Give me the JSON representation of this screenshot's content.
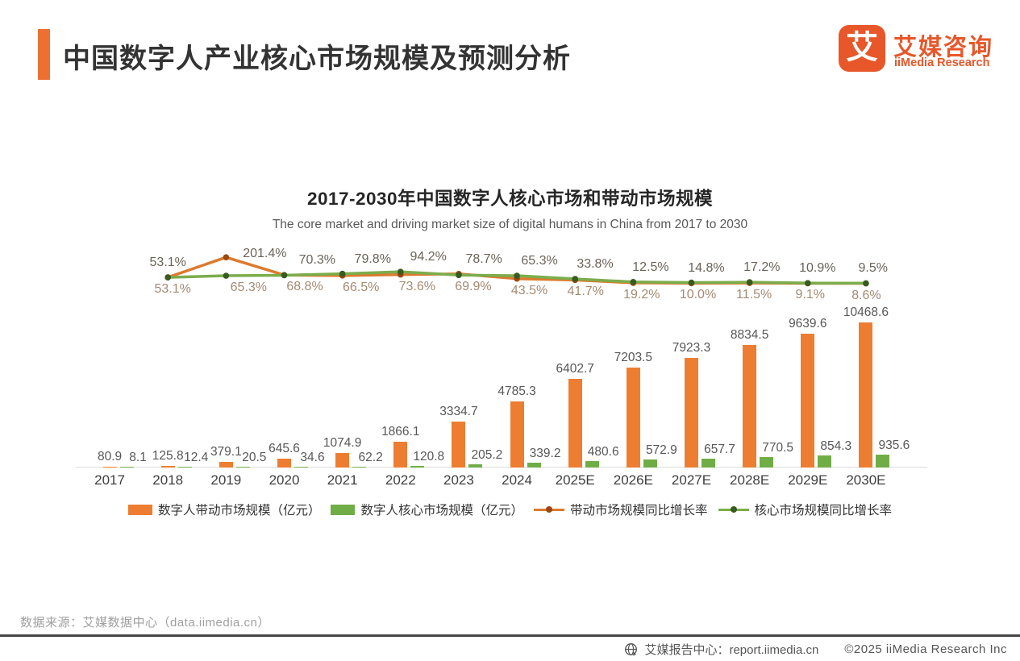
{
  "header": {
    "title": "中国数字人产业核心市场规模及预测分析",
    "logo": {
      "mark": "艾",
      "name_cn": "艾媒咨询",
      "name_en": "iiMedia Research"
    }
  },
  "chart": {
    "title": "2017-2030年中国数字人核心市场和带动市场规模",
    "subtitle": "The core market and driving market size of digital humans in China from 2017 to 2030"
  },
  "chart_data": {
    "type": "bar+line combo",
    "categories": [
      "2017",
      "2018",
      "2019",
      "2020",
      "2021",
      "2022",
      "2023",
      "2024",
      "2025E",
      "2026E",
      "2027E",
      "2028E",
      "2029E",
      "2030E"
    ],
    "bar_series": [
      {
        "name": "数字人带动市场规模（亿元）",
        "color": "#ED7D31",
        "values": [
          80.9,
          125.8,
          379.1,
          645.6,
          1074.9,
          1866.1,
          3334.7,
          4785.3,
          6402.7,
          7203.5,
          7923.3,
          8834.5,
          9639.6,
          10468.6
        ]
      },
      {
        "name": "数字人核心市场规模（亿元）",
        "color": "#70AD47",
        "values": [
          8.1,
          12.4,
          20.5,
          34.6,
          62.2,
          120.8,
          205.2,
          339.2,
          480.6,
          572.9,
          657.7,
          770.5,
          854.3,
          935.6
        ]
      }
    ],
    "line_series": [
      {
        "name": "带动市场规模同比增长率",
        "color": "#DC7A2F",
        "dot_color": "#9C480F",
        "first_year": "2018",
        "values": [
          53.1,
          201.4,
          70.3,
          66.5,
          73.6,
          78.7,
          43.5,
          33.8,
          12.5,
          10.0,
          11.5,
          9.1,
          8.6
        ]
      },
      {
        "name": "核心市场规模同比增长率",
        "color": "#7BAD4C",
        "dot_color": "#375B20",
        "first_year": "2018",
        "values": [
          53.1,
          65.3,
          68.8,
          79.8,
          94.2,
          69.9,
          65.3,
          41.7,
          19.2,
          14.8,
          17.2,
          10.9,
          9.5
        ]
      }
    ],
    "line_labels_top": [
      "53.1%",
      "201.4%",
      "70.3%",
      "79.8%",
      "94.2%",
      "78.7%",
      "65.3%",
      "33.8%",
      "12.5%",
      "14.8%",
      "17.2%",
      "10.9%",
      "9.5%"
    ],
    "line_labels_bottom": [
      "53.1%",
      "65.3%",
      "68.8%",
      "66.5%",
      "73.6%",
      "69.9%",
      "43.5%",
      "41.7%",
      "19.2%",
      "10.0%",
      "11.5%",
      "9.1%",
      "8.6%"
    ],
    "ylim_bars": [
      0,
      10468.6
    ],
    "grid": "off",
    "legend_position": "bottom"
  },
  "legend": {
    "items": [
      {
        "label": "数字人带动市场规模（亿元）",
        "swatch": "bar",
        "color": "#ED7D31"
      },
      {
        "label": "数字人核心市场规模（亿元）",
        "swatch": "bar",
        "color": "#70AD47"
      },
      {
        "label": "带动市场规模同比增长率",
        "swatch": "line",
        "color": "#DC7A2F",
        "dot": "#9C480F"
      },
      {
        "label": "核心市场规模同比增长率",
        "swatch": "line",
        "color": "#7BAD4C",
        "dot": "#375B20"
      }
    ]
  },
  "footer": {
    "source": "数据来源：艾媒数据中心（data.iimedia.cn）",
    "report_center": "艾媒报告中心：report.iimedia.cn",
    "copyright": "©2025  iiMedia Research  Inc"
  },
  "colors": {
    "accent": "#ED7033",
    "brand": "#E7572A",
    "axis_text": "#3f3f3f",
    "bar_label": "#575757"
  }
}
